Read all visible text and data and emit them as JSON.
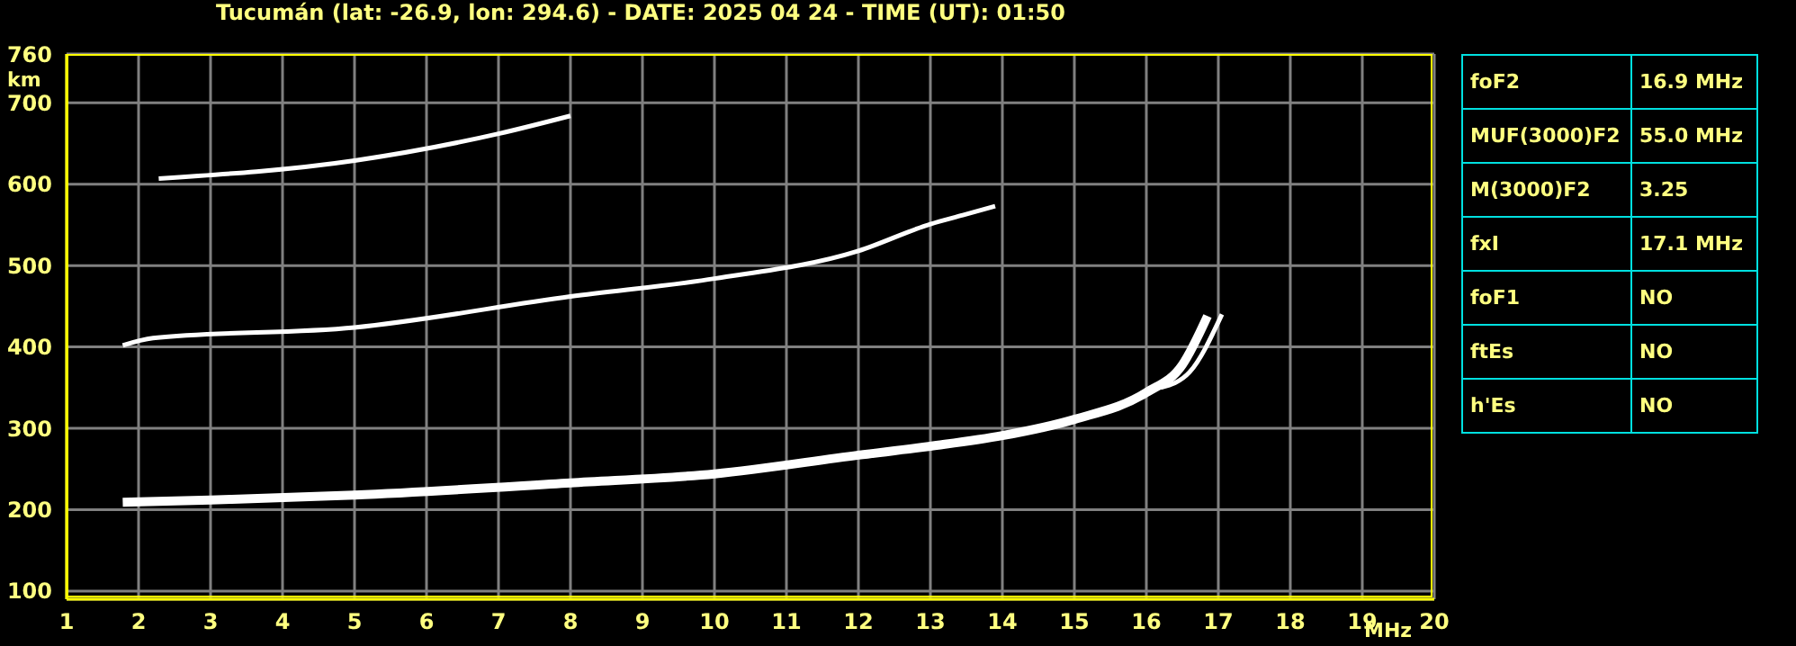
{
  "chart_data": {
    "type": "line",
    "title": "Tucumán (lat: -26.9, lon: 294.6) - DATE: 2025 04 24 - TIME (UT): 01:50",
    "xlabel": "MHz",
    "ylabel": "km",
    "series": [
      {
        "color": "#ffffff",
        "x": [
          1.78,
          3,
          5,
          8,
          10,
          12,
          13,
          14,
          15,
          16,
          16.5,
          16.85
        ],
        "values": [
          209,
          212,
          218,
          233,
          244,
          267,
          278,
          291,
          311,
          344,
          378,
          438
        ]
      },
      {
        "color": "#ffffff",
        "x": [
          16.2,
          16.6,
          17.05
        ],
        "values": [
          350,
          369,
          440
        ]
      },
      {
        "color": "#ffffff",
        "x": [
          1.78,
          2.2,
          5,
          8,
          10,
          12,
          13,
          13.45,
          13.9
        ],
        "values": [
          402,
          411,
          424,
          462,
          484,
          518,
          551,
          562,
          573
        ]
      },
      {
        "color": "#ffffff",
        "x": [
          2.28,
          5,
          7,
          8
        ],
        "values": [
          607,
          629,
          662,
          684
        ]
      }
    ],
    "xlim": [
      1,
      20
    ],
    "xticks": [
      1,
      2,
      3,
      4,
      5,
      6,
      7,
      8,
      9,
      10,
      11,
      12,
      13,
      14,
      15,
      16,
      17,
      18,
      19,
      20
    ],
    "ylim": [
      90,
      760
    ],
    "yticks": [
      100,
      200,
      300,
      400,
      500,
      600,
      700,
      760
    ],
    "grid": true,
    "marker": "none",
    "line_style": "solid",
    "annotations": [
      "foF2",
      "16.9 MHz",
      "MUF(3000)F2",
      "55.0 MHz",
      "M(3000)F2",
      "3.25",
      "fxI",
      "17.1 MHz",
      "foF1",
      "NO",
      "ftEs",
      "NO",
      "h'Es",
      "NO"
    ]
  }
}
